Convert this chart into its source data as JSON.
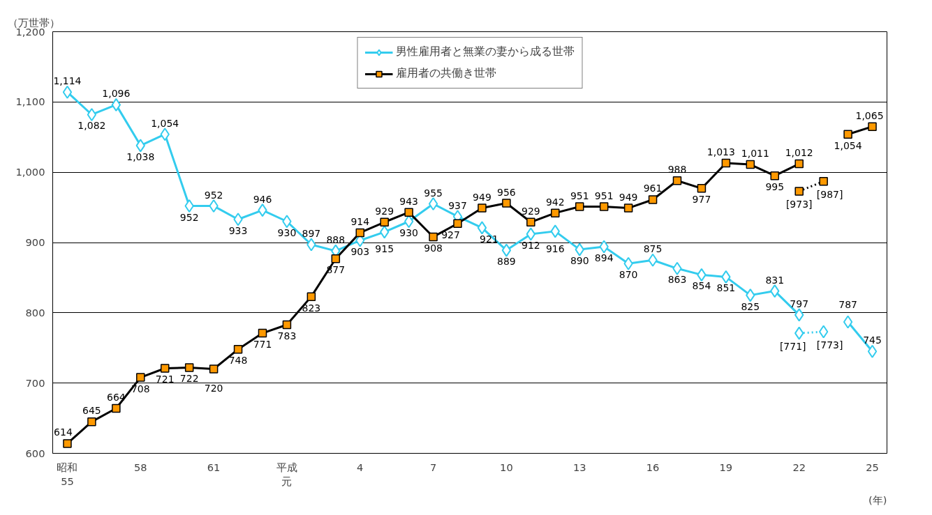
{
  "chart_data": {
    "type": "line",
    "ylabel": "（万世帯）",
    "xlabel": "(年)",
    "categories": [
      "昭和55",
      null,
      null,
      "58",
      null,
      null,
      "61",
      null,
      null,
      "平成元",
      null,
      null,
      "4",
      null,
      null,
      "7",
      null,
      null,
      "10",
      null,
      null,
      "13",
      null,
      null,
      "16",
      null,
      null,
      "19",
      null,
      null,
      "22",
      null,
      null,
      "25"
    ],
    "ylim": [
      600,
      1200
    ],
    "yticks": [
      600,
      700,
      800,
      900,
      {
        "value": 1000,
        "label": "1,000"
      },
      {
        "value": 1100,
        "label": "1,100"
      },
      {
        "value": 1200,
        "label": "1,200"
      }
    ],
    "grid": "y",
    "legend": "top",
    "series": [
      {
        "name": "男性雇用者と無業の妻から成る世帯",
        "color": "#33ccee",
        "marker": "diamond",
        "line_style": "solid",
        "values": [
          1114,
          1082,
          1096,
          1038,
          1054,
          952,
          952,
          933,
          946,
          930,
          897,
          888,
          903,
          915,
          930,
          955,
          937,
          921,
          889,
          912,
          916,
          890,
          894,
          870,
          875,
          863,
          854,
          851,
          825,
          831,
          797,
          null,
          787,
          745
        ],
        "value_labels": [
          "1,114",
          "1,082",
          "1,096",
          "1,038",
          "1,054",
          "952",
          "952",
          "933",
          "946",
          "930",
          "897",
          "888",
          "903",
          "915",
          "930",
          "955",
          "937",
          "921",
          "889",
          "912",
          "916",
          "890",
          "894",
          "870",
          "875",
          "863",
          "854",
          "851",
          "825",
          "831",
          "797",
          null,
          "787",
          "745"
        ]
      },
      {
        "name": "雇用者の共働き世帯",
        "color": "#000000",
        "marker": "square",
        "line_style": "solid",
        "values": [
          614,
          645,
          664,
          708,
          721,
          722,
          720,
          748,
          771,
          783,
          823,
          877,
          914,
          929,
          943,
          908,
          927,
          949,
          956,
          929,
          942,
          951,
          951,
          949,
          961,
          988,
          977,
          1013,
          1011,
          995,
          1012,
          null,
          1054,
          1065
        ],
        "value_labels": [
          "614",
          "645",
          "664",
          "708",
          "721",
          "722",
          "720",
          "748",
          "771",
          "783",
          "823",
          "877",
          "914",
          "929",
          "943",
          "908",
          "927",
          "949",
          "956",
          "929",
          "942",
          "951",
          "951",
          "949",
          "961",
          "988",
          "977",
          "1,013",
          "1,011",
          "995",
          "1,012",
          null,
          "1,054",
          "1,065"
        ]
      },
      {
        "color": "#33ccee",
        "marker": "diamond",
        "line_style": "dotted",
        "values": [
          null,
          null,
          null,
          null,
          null,
          null,
          null,
          null,
          null,
          null,
          null,
          null,
          null,
          null,
          null,
          null,
          null,
          null,
          null,
          null,
          null,
          null,
          null,
          null,
          null,
          null,
          null,
          null,
          null,
          null,
          771,
          773,
          null,
          null
        ],
        "value_labels": [
          null,
          null,
          null,
          null,
          null,
          null,
          null,
          null,
          null,
          null,
          null,
          null,
          null,
          null,
          null,
          null,
          null,
          null,
          null,
          null,
          null,
          null,
          null,
          null,
          null,
          null,
          null,
          null,
          null,
          null,
          "[771]",
          "[773]",
          null,
          null
        ]
      },
      {
        "color": "#000000",
        "marker": "square",
        "line_style": "dotted",
        "values": [
          null,
          null,
          null,
          null,
          null,
          null,
          null,
          null,
          null,
          null,
          null,
          null,
          null,
          null,
          null,
          null,
          null,
          null,
          null,
          null,
          null,
          null,
          null,
          null,
          null,
          null,
          null,
          null,
          null,
          null,
          973,
          987,
          null,
          null
        ],
        "value_labels": [
          null,
          null,
          null,
          null,
          null,
          null,
          null,
          null,
          null,
          null,
          null,
          null,
          null,
          null,
          null,
          null,
          null,
          null,
          null,
          null,
          null,
          null,
          null,
          null,
          null,
          null,
          null,
          null,
          null,
          null,
          "[973]",
          "[987]",
          null,
          null
        ]
      }
    ]
  }
}
